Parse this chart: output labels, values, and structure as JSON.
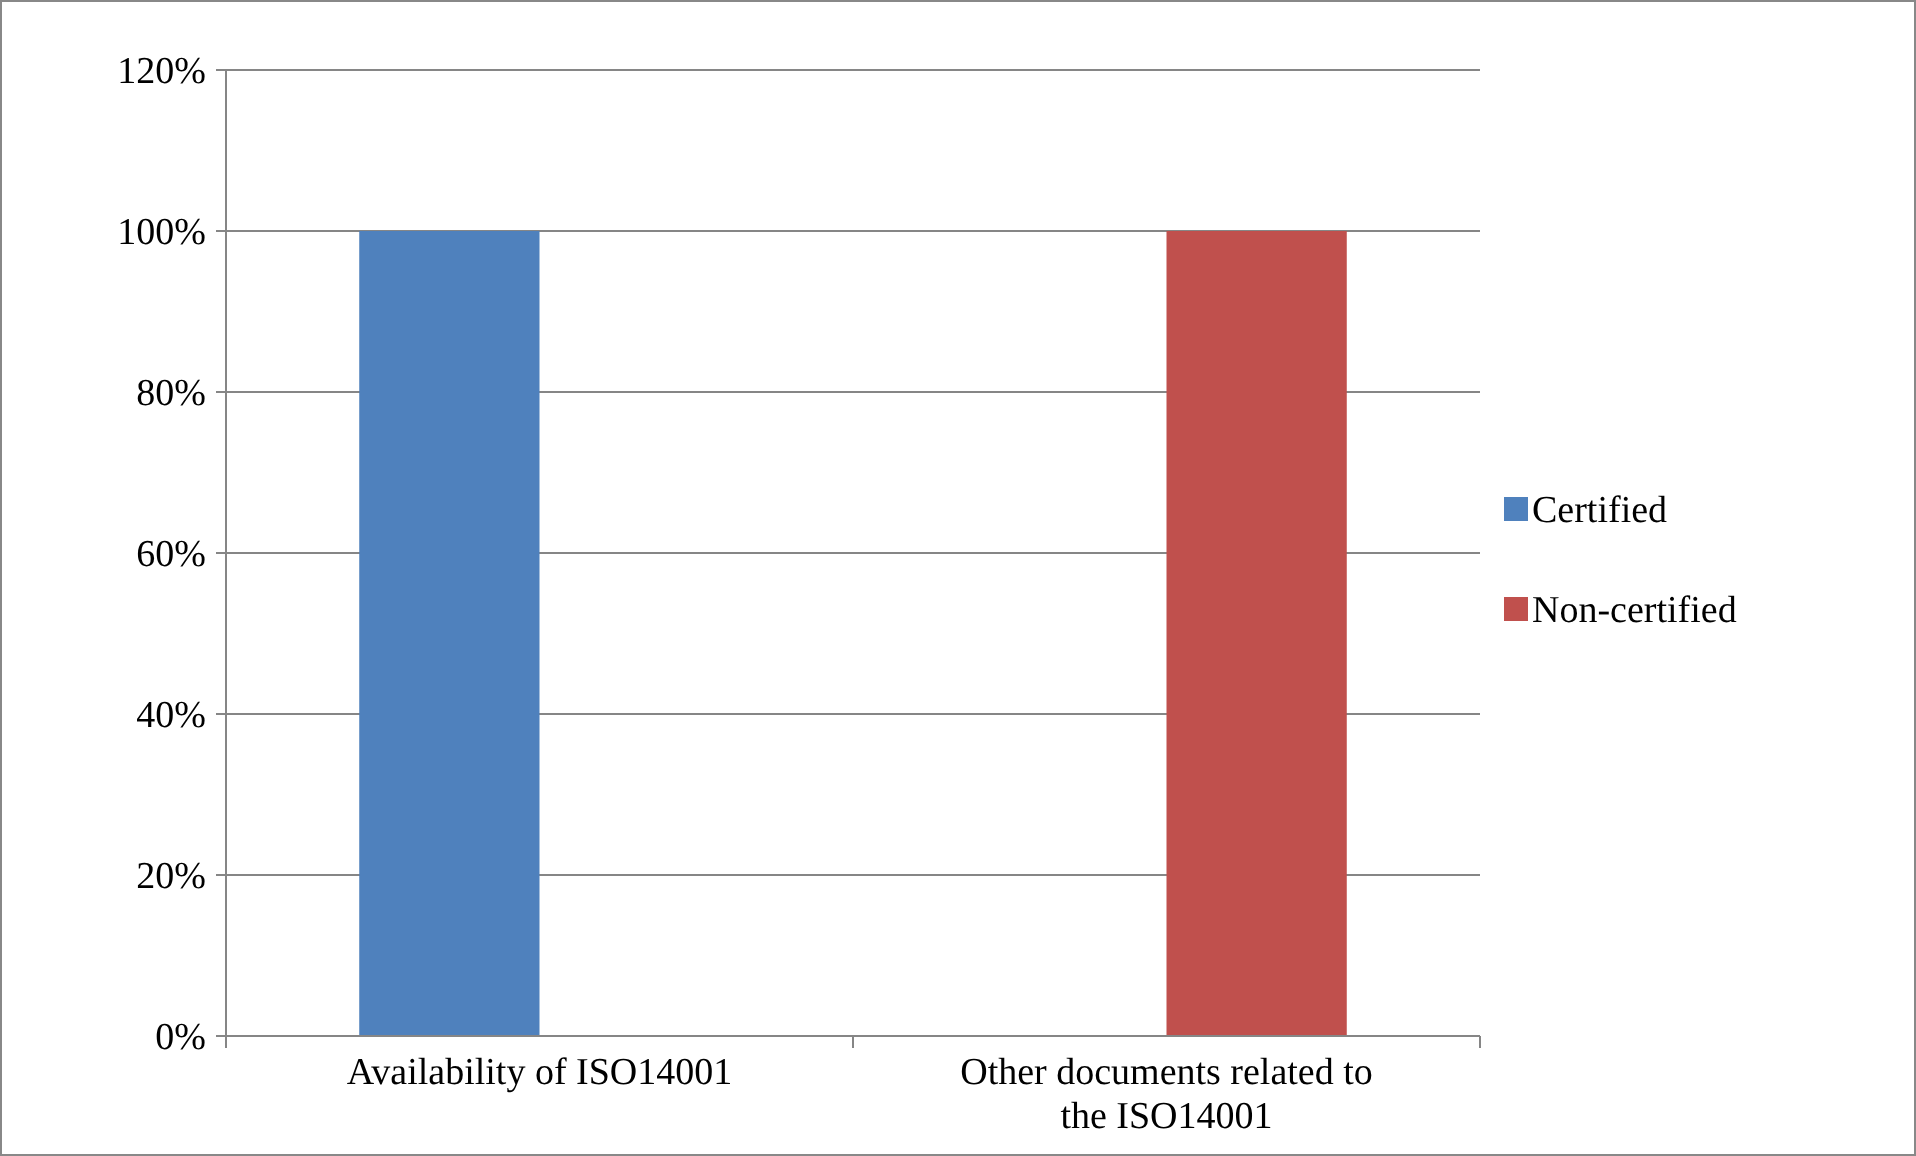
{
  "chart_data": {
    "type": "bar",
    "categories": [
      "Availability of ISO14001",
      "Other documents related to the ISO14001"
    ],
    "series": [
      {
        "name": "Certified",
        "color": "#4f81bd",
        "values": [
          100,
          0
        ]
      },
      {
        "name": "Non-certified",
        "color": "#c0504d",
        "values": [
          0,
          100
        ]
      }
    ],
    "ylim": [
      0,
      120
    ],
    "yticks": [
      {
        "value": 0,
        "label": "0%"
      },
      {
        "value": 20,
        "label": "20%"
      },
      {
        "value": 40,
        "label": "40%"
      },
      {
        "value": 60,
        "label": "60%"
      },
      {
        "value": 80,
        "label": "80%"
      },
      {
        "value": 100,
        "label": "100%"
      },
      {
        "value": 120,
        "label": "120%"
      }
    ],
    "grid": "y",
    "legend": "right"
  }
}
